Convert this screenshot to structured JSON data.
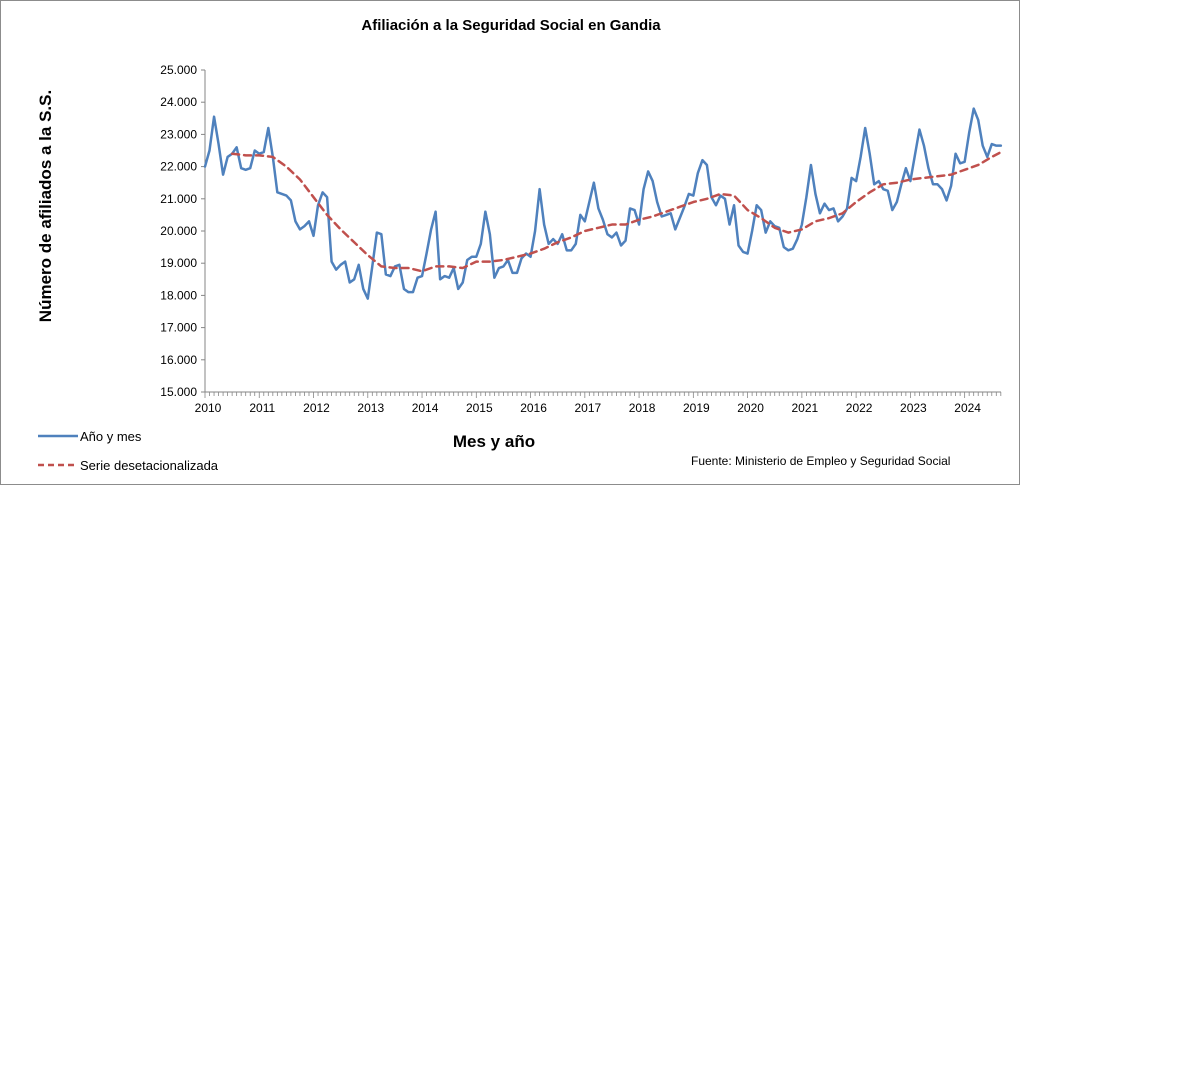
{
  "chart_data": {
    "type": "line",
    "title": "Afiliación  a la Seguridad Social en Gandia",
    "xlabel": "Mes y año",
    "ylabel": "Número de afiliados a la S.S.",
    "ylim": [
      15000,
      25000
    ],
    "yticks": [
      15000,
      16000,
      17000,
      18000,
      19000,
      20000,
      21000,
      22000,
      23000,
      24000,
      25000
    ],
    "ytick_labels": [
      "15.000",
      "16.000",
      "17.000",
      "18.000",
      "19.000",
      "20.000",
      "21.000",
      "22.000",
      "23.000",
      "24.000",
      "25.000"
    ],
    "xtick_labels": [
      "2010",
      "2011",
      "2012",
      "2013",
      "2014",
      "2015",
      "2016",
      "2017",
      "2018",
      "2019",
      "2020",
      "2021",
      "2022",
      "2023",
      "2024"
    ],
    "x_start_year": 2010,
    "x_end": 2024.67,
    "grid": false,
    "legend_position": "bottom-left",
    "source": "Fuente: Ministerio de Empleo y Seguridad Social",
    "series": [
      {
        "name": "Año y mes",
        "style": "solid",
        "color": "#4f81bd",
        "x": [
          2010.0,
          2010.083,
          2010.167,
          2010.25,
          2010.333,
          2010.417,
          2010.5,
          2010.583,
          2010.667,
          2010.75,
          2010.833,
          2010.917,
          2011.0,
          2011.083,
          2011.167,
          2011.25,
          2011.333,
          2011.417,
          2011.5,
          2011.583,
          2011.667,
          2011.75,
          2011.833,
          2011.917,
          2012.0,
          2012.083,
          2012.167,
          2012.25,
          2012.333,
          2012.417,
          2012.5,
          2012.583,
          2012.667,
          2012.75,
          2012.833,
          2012.917,
          2013.0,
          2013.083,
          2013.167,
          2013.25,
          2013.333,
          2013.417,
          2013.5,
          2013.583,
          2013.667,
          2013.75,
          2013.833,
          2013.917,
          2014.0,
          2014.083,
          2014.167,
          2014.25,
          2014.333,
          2014.417,
          2014.5,
          2014.583,
          2014.667,
          2014.75,
          2014.833,
          2014.917,
          2015.0,
          2015.083,
          2015.167,
          2015.25,
          2015.333,
          2015.417,
          2015.5,
          2015.583,
          2015.667,
          2015.75,
          2015.833,
          2015.917,
          2016.0,
          2016.083,
          2016.167,
          2016.25,
          2016.333,
          2016.417,
          2016.5,
          2016.583,
          2016.667,
          2016.75,
          2016.833,
          2016.917,
          2017.0,
          2017.083,
          2017.167,
          2017.25,
          2017.333,
          2017.417,
          2017.5,
          2017.583,
          2017.667,
          2017.75,
          2017.833,
          2017.917,
          2018.0,
          2018.083,
          2018.167,
          2018.25,
          2018.333,
          2018.417,
          2018.5,
          2018.583,
          2018.667,
          2018.75,
          2018.833,
          2018.917,
          2019.0,
          2019.083,
          2019.167,
          2019.25,
          2019.333,
          2019.417,
          2019.5,
          2019.583,
          2019.667,
          2019.75,
          2019.833,
          2019.917,
          2020.0,
          2020.083,
          2020.167,
          2020.25,
          2020.333,
          2020.417,
          2020.5,
          2020.583,
          2020.667,
          2020.75,
          2020.833,
          2020.917,
          2021.0,
          2021.083,
          2021.167,
          2021.25,
          2021.333,
          2021.417,
          2021.5,
          2021.583,
          2021.667,
          2021.75,
          2021.833,
          2021.917,
          2022.0,
          2022.083,
          2022.167,
          2022.25,
          2022.333,
          2022.417,
          2022.5,
          2022.583,
          2022.667,
          2022.75,
          2022.833,
          2022.917,
          2023.0,
          2023.083,
          2023.167,
          2023.25,
          2023.333,
          2023.417,
          2023.5,
          2023.583,
          2023.667,
          2023.75,
          2023.833,
          2023.917,
          2024.0,
          2024.083,
          2024.167,
          2024.25,
          2024.333,
          2024.417,
          2024.5,
          2024.583,
          2024.667
        ],
        "y": [
          22000,
          22500,
          23550,
          22700,
          21750,
          22300,
          22400,
          22600,
          21950,
          21900,
          21950,
          22500,
          22400,
          22450,
          23200,
          22300,
          21200,
          21150,
          21100,
          20950,
          20300,
          20050,
          20150,
          20300,
          19850,
          20800,
          21200,
          21050,
          19050,
          18800,
          18950,
          19050,
          18400,
          18500,
          18950,
          18200,
          17900,
          18900,
          19950,
          19900,
          18650,
          18600,
          18900,
          18950,
          18200,
          18100,
          18100,
          18550,
          18600,
          19300,
          20050,
          20600,
          18500,
          18600,
          18550,
          18850,
          18200,
          18400,
          19100,
          19200,
          19200,
          19600,
          20600,
          19900,
          18550,
          18850,
          18900,
          19100,
          18700,
          18700,
          19150,
          19300,
          19200,
          20000,
          21300,
          20200,
          19600,
          19750,
          19600,
          19900,
          19400,
          19400,
          19600,
          20500,
          20300,
          20900,
          21500,
          20700,
          20350,
          19900,
          19800,
          19950,
          19550,
          19700,
          20700,
          20650,
          20200,
          21300,
          21850,
          21550,
          20900,
          20450,
          20500,
          20550,
          20050,
          20400,
          20750,
          21150,
          21100,
          21800,
          22200,
          22050,
          21050,
          20800,
          21100,
          21000,
          20200,
          20800,
          19550,
          19350,
          19300,
          20000,
          20800,
          20650,
          19950,
          20300,
          20150,
          20100,
          19500,
          19400,
          19450,
          19750,
          20200,
          21050,
          22050,
          21150,
          20550,
          20850,
          20650,
          20700,
          20300,
          20450,
          20700,
          21650,
          21550,
          22300,
          23200,
          22400,
          21450,
          21550,
          21300,
          21250,
          20650,
          20900,
          21450,
          21950,
          21550,
          22350,
          23150,
          22650,
          21950,
          21450,
          21450,
          21300,
          20950,
          21400,
          22400,
          22100,
          22150,
          23050,
          23800,
          23450,
          22650,
          22300,
          22700,
          22650,
          22650
        ]
      },
      {
        "name": "Serie desetacionalizada",
        "style": "dashed",
        "color": "#c0504d",
        "x": [
          2010.5,
          2010.75,
          2011.0,
          2011.25,
          2011.5,
          2011.75,
          2012.0,
          2012.25,
          2012.5,
          2012.75,
          2013.0,
          2013.25,
          2013.5,
          2013.75,
          2014.0,
          2014.25,
          2014.5,
          2014.75,
          2015.0,
          2015.25,
          2015.5,
          2015.75,
          2016.0,
          2016.25,
          2016.5,
          2016.75,
          2017.0,
          2017.25,
          2017.5,
          2017.75,
          2018.0,
          2018.25,
          2018.5,
          2018.75,
          2019.0,
          2019.25,
          2019.5,
          2019.75,
          2020.0,
          2020.25,
          2020.5,
          2020.75,
          2021.0,
          2021.25,
          2021.5,
          2021.75,
          2022.0,
          2022.25,
          2022.5,
          2022.75,
          2023.0,
          2023.25,
          2023.5,
          2023.75,
          2024.0,
          2024.25,
          2024.5,
          2024.67
        ],
        "y": [
          22400,
          22350,
          22350,
          22300,
          22000,
          21600,
          21050,
          20500,
          20050,
          19650,
          19250,
          18900,
          18850,
          18850,
          18750,
          18900,
          18900,
          18850,
          19050,
          19050,
          19100,
          19200,
          19300,
          19450,
          19650,
          19800,
          20000,
          20100,
          20200,
          20200,
          20350,
          20450,
          20600,
          20750,
          20900,
          21000,
          21150,
          21100,
          20650,
          20400,
          20100,
          19950,
          20050,
          20300,
          20400,
          20550,
          20900,
          21200,
          21450,
          21500,
          21600,
          21650,
          21700,
          21750,
          21900,
          22050,
          22300,
          22450
        ]
      }
    ]
  }
}
